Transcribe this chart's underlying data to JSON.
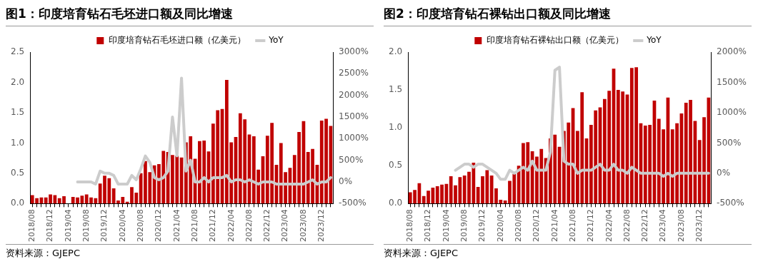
{
  "chart_data": [
    {
      "type": "bar",
      "title": "图1：印度培育钻石毛坯进口额及同比增速",
      "legend": "top",
      "grid": false,
      "marker": "none",
      "line_style": "solid",
      "categories": [
        "2018/08",
        null,
        null,
        null,
        "2018/12",
        null,
        null,
        null,
        "2019/04",
        null,
        null,
        null,
        "2019/08",
        null,
        null,
        null,
        "2019/12",
        null,
        null,
        null,
        "2020/04",
        null,
        null,
        null,
        "2020/08",
        null,
        null,
        null,
        "2020/12",
        null,
        null,
        null,
        "2021/04",
        null,
        null,
        null,
        "2021/08",
        null,
        null,
        null,
        "2021/12",
        null,
        null,
        null,
        "2022/04",
        null,
        null,
        null,
        "2022/08",
        null,
        null,
        null,
        "2022/12",
        null,
        null,
        null,
        "2023/04",
        null,
        null,
        null,
        "2023/08",
        null,
        null,
        null,
        "2023/12",
        null,
        null
      ],
      "series": [
        {
          "name": "印度培育钻石毛坯进口额（亿美元）",
          "color": "#c00000",
          "values": [
            0.14,
            0.09,
            0.1,
            0.1,
            0.15,
            0.14,
            0.09,
            0.12,
            null,
            0.11,
            0.1,
            0.13,
            0.15,
            0.1,
            0.09,
            0.33,
            0.46,
            0.42,
            0.25,
            0.05,
            0.11,
            0.03,
            0.27,
            0.18,
            0.5,
            0.7,
            0.52,
            0.63,
            0.65,
            0.87,
            0.85,
            0.8,
            0.79,
            0.76,
            1.01,
            1.11,
            0.74,
            1.03,
            1.04,
            0.86,
            1.32,
            1.54,
            1.56,
            2.04,
            1.01,
            1.1,
            1.49,
            1.39,
            1.14,
            1.11,
            0.56,
            0.78,
            1.12,
            1.33,
            0.64,
            1.0,
            0.52,
            0.59,
            0.8,
            1.18,
            1.36,
            0.85,
            0.9,
            0.64,
            1.37,
            1.4,
            1.28
          ]
        },
        {
          "name": "YoY",
          "type": "line",
          "axis": "y2",
          "color": "#cccccc",
          "values": [
            null,
            null,
            null,
            null,
            null,
            null,
            null,
            null,
            null,
            null,
            0,
            0,
            0,
            0,
            -50,
            250,
            200,
            200,
            150,
            -50,
            -50,
            -50,
            150,
            50,
            300,
            600,
            450,
            100,
            50,
            100,
            250,
            1500,
            600,
            2400,
            250,
            500,
            0,
            0,
            100,
            0,
            100,
            100,
            100,
            150,
            0,
            50,
            50,
            0,
            50,
            0,
            -50,
            0,
            0,
            0,
            -50,
            -50,
            -50,
            -50,
            -50,
            -50,
            -50,
            0,
            50,
            -50,
            0,
            0,
            100
          ]
        }
      ],
      "ylim": [
        0,
        2.5
      ],
      "yticks": [
        {
          "value": 0,
          "label": "0.0"
        },
        {
          "value": 0.5,
          "label": "0.5"
        },
        {
          "value": 1,
          "label": "1.0"
        },
        {
          "value": 1.5,
          "label": "1.5"
        },
        {
          "value": 2,
          "label": "2.0"
        },
        {
          "value": 2.5,
          "label": "2.5"
        }
      ],
      "y2lim": [
        -500,
        3000
      ],
      "y2ticks": [
        {
          "value": -500,
          "label": "-500%"
        },
        {
          "value": 0,
          "label": "0%"
        },
        {
          "value": 500,
          "label": "500%"
        },
        {
          "value": 1000,
          "label": "1000%"
        },
        {
          "value": 1500,
          "label": "1500%"
        },
        {
          "value": 2000,
          "label": "2000%"
        },
        {
          "value": 2500,
          "label": "2500%"
        },
        {
          "value": 3000,
          "label": "3000%"
        }
      ],
      "annotations": [
        "资料来源：GJEPC"
      ]
    },
    {
      "type": "bar",
      "title": "图2：印度培育钻石裸钻出口额及同比增速",
      "legend": "top",
      "grid": false,
      "marker": "none",
      "line_style": "solid",
      "categories": [
        "2018/08",
        null,
        null,
        null,
        "2018/12",
        null,
        null,
        null,
        "2019/04",
        null,
        null,
        null,
        "2019/08",
        null,
        null,
        null,
        "2019/12",
        null,
        null,
        null,
        "2020/04",
        null,
        null,
        null,
        "2020/08",
        null,
        null,
        null,
        "2020/12",
        null,
        null,
        null,
        "2021/04",
        null,
        null,
        null,
        "2021/08",
        null,
        null,
        null,
        "2021/12",
        null,
        null,
        null,
        "2022/04",
        null,
        null,
        null,
        "2022/08",
        null,
        null,
        null,
        "2022/12",
        null,
        null,
        null,
        "2023/04",
        null,
        null,
        null,
        "2023/08",
        null,
        null,
        null,
        "2023/12",
        null,
        null
      ],
      "series": [
        {
          "name": "印度培育钻石裸钻出口额（亿美元）",
          "color": "#c00000",
          "values": [
            0.15,
            0.18,
            0.27,
            0.1,
            0.17,
            0.21,
            0.23,
            0.25,
            0.26,
            0.36,
            0.24,
            0.35,
            0.37,
            0.42,
            0.54,
            0.22,
            0.36,
            0.44,
            0.37,
            0.2,
            0.05,
            0.04,
            0.3,
            0.39,
            0.5,
            0.8,
            0.81,
            0.69,
            0.62,
            0.72,
            0.6,
            0.86,
            0.91,
            0.75,
            0.96,
            1.07,
            1.26,
            0.96,
            1.47,
            0.86,
            1.04,
            1.23,
            1.27,
            1.38,
            1.49,
            1.78,
            1.5,
            1.48,
            1.44,
            1.79,
            1.8,
            1.06,
            1.03,
            1.04,
            1.36,
            1.12,
            0.98,
            1.4,
            0.98,
            1.06,
            1.19,
            1.33,
            1.37,
            1.09,
            0.84,
            1.14,
            1.4
          ]
        },
        {
          "name": "YoY",
          "type": "line",
          "axis": "y2",
          "color": "#cccccc",
          "values": [
            null,
            null,
            null,
            null,
            null,
            null,
            null,
            null,
            null,
            null,
            50,
            100,
            150,
            150,
            100,
            150,
            150,
            100,
            50,
            0,
            -100,
            -100,
            50,
            0,
            50,
            100,
            50,
            200,
            50,
            50,
            50,
            350,
            1700,
            1750,
            200,
            150,
            150,
            0,
            50,
            50,
            50,
            100,
            150,
            50,
            50,
            150,
            50,
            50,
            0,
            100,
            50,
            0,
            0,
            0,
            0,
            0,
            -50,
            0,
            -50,
            0,
            0,
            0,
            0,
            0,
            0,
            0,
            0
          ]
        }
      ],
      "ylim": [
        0,
        2
      ],
      "yticks": [
        {
          "value": 0,
          "label": "0.0"
        },
        {
          "value": 0.5,
          "label": "0.5"
        },
        {
          "value": 1,
          "label": "1.0"
        },
        {
          "value": 1.5,
          "label": "1.5"
        },
        {
          "value": 2,
          "label": "2.0"
        }
      ],
      "y2lim": [
        -500,
        2000
      ],
      "y2ticks": [
        {
          "value": -500,
          "label": "-500%"
        },
        {
          "value": 0,
          "label": "0%"
        },
        {
          "value": 500,
          "label": "500%"
        },
        {
          "value": 1000,
          "label": "1000%"
        },
        {
          "value": 1500,
          "label": "1500%"
        },
        {
          "value": 2000,
          "label": "2000%"
        }
      ],
      "annotations": [
        "资料来源：GJEPC"
      ]
    }
  ]
}
